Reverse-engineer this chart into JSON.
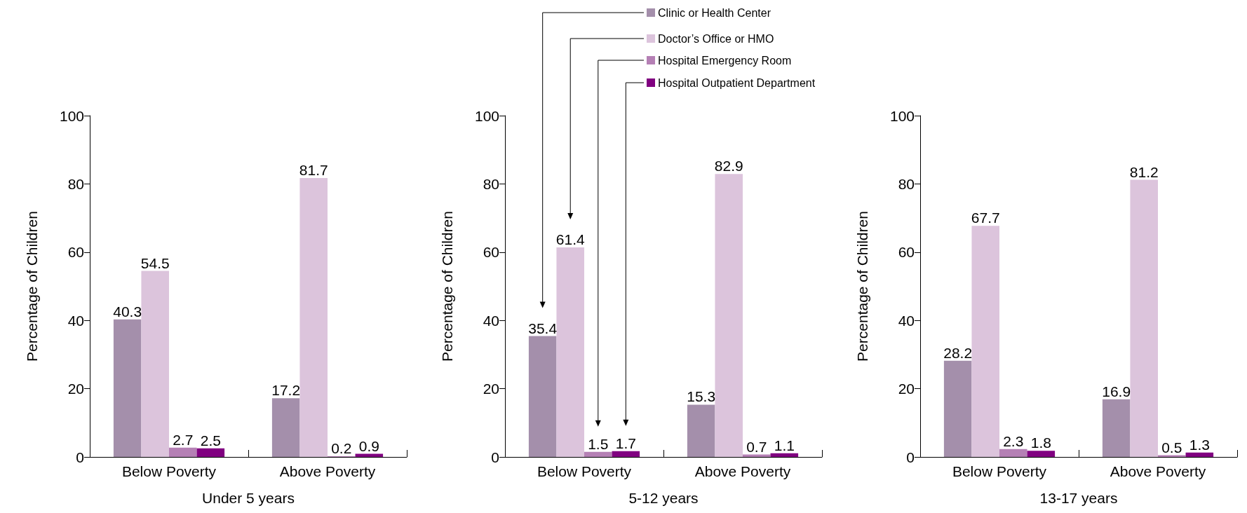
{
  "chart_data": [
    {
      "type": "bar",
      "xlabel": "Under 5 years",
      "ylabel": "Percentage of Children",
      "categories": [
        "Below Poverty",
        "Above Poverty"
      ],
      "ylim": [
        0,
        100
      ],
      "yticks": [
        0,
        20,
        40,
        60,
        80,
        100
      ],
      "grid": false,
      "data_labels": true,
      "series": [
        {
          "color": "#a48fab",
          "values": [
            40.3,
            17.2
          ]
        },
        {
          "color": "#dcc4dc",
          "values": [
            54.5,
            81.7
          ]
        },
        {
          "color": "#b580b5",
          "values": [
            2.7,
            0.2
          ]
        },
        {
          "color": "#800080",
          "values": [
            2.5,
            0.9
          ]
        }
      ]
    },
    {
      "type": "bar",
      "xlabel": "5-12 years",
      "ylabel": "Percentage of Children",
      "categories": [
        "Below Poverty",
        "Above Poverty"
      ],
      "ylim": [
        0,
        100
      ],
      "yticks": [
        0,
        20,
        40,
        60,
        80,
        100
      ],
      "grid": false,
      "data_labels": true,
      "legend": "top right",
      "series": [
        {
          "name": "Clinic or Health Center",
          "color": "#a48fab",
          "values": [
            35.4,
            15.3
          ]
        },
        {
          "name": "Doctor’s Office or HMO",
          "color": "#dcc4dc",
          "values": [
            61.4,
            82.9
          ]
        },
        {
          "name": "Hospital Emergency Room",
          "color": "#b580b5",
          "values": [
            1.5,
            0.7
          ]
        },
        {
          "name": "Hospital Outpatient Department",
          "color": "#800080",
          "values": [
            1.7,
            1.1
          ]
        }
      ]
    },
    {
      "type": "bar",
      "xlabel": "13-17 years",
      "ylabel": "Percentage of Children",
      "categories": [
        "Below Poverty",
        "Above Poverty"
      ],
      "ylim": [
        0,
        100
      ],
      "yticks": [
        0,
        20,
        40,
        60,
        80,
        100
      ],
      "grid": false,
      "data_labels": true,
      "series": [
        {
          "color": "#a48fab",
          "values": [
            28.2,
            16.9
          ]
        },
        {
          "color": "#dcc4dc",
          "values": [
            67.7,
            81.2
          ]
        },
        {
          "color": "#b580b5",
          "values": [
            2.3,
            0.5
          ]
        },
        {
          "color": "#800080",
          "values": [
            1.8,
            1.3
          ]
        }
      ]
    }
  ]
}
